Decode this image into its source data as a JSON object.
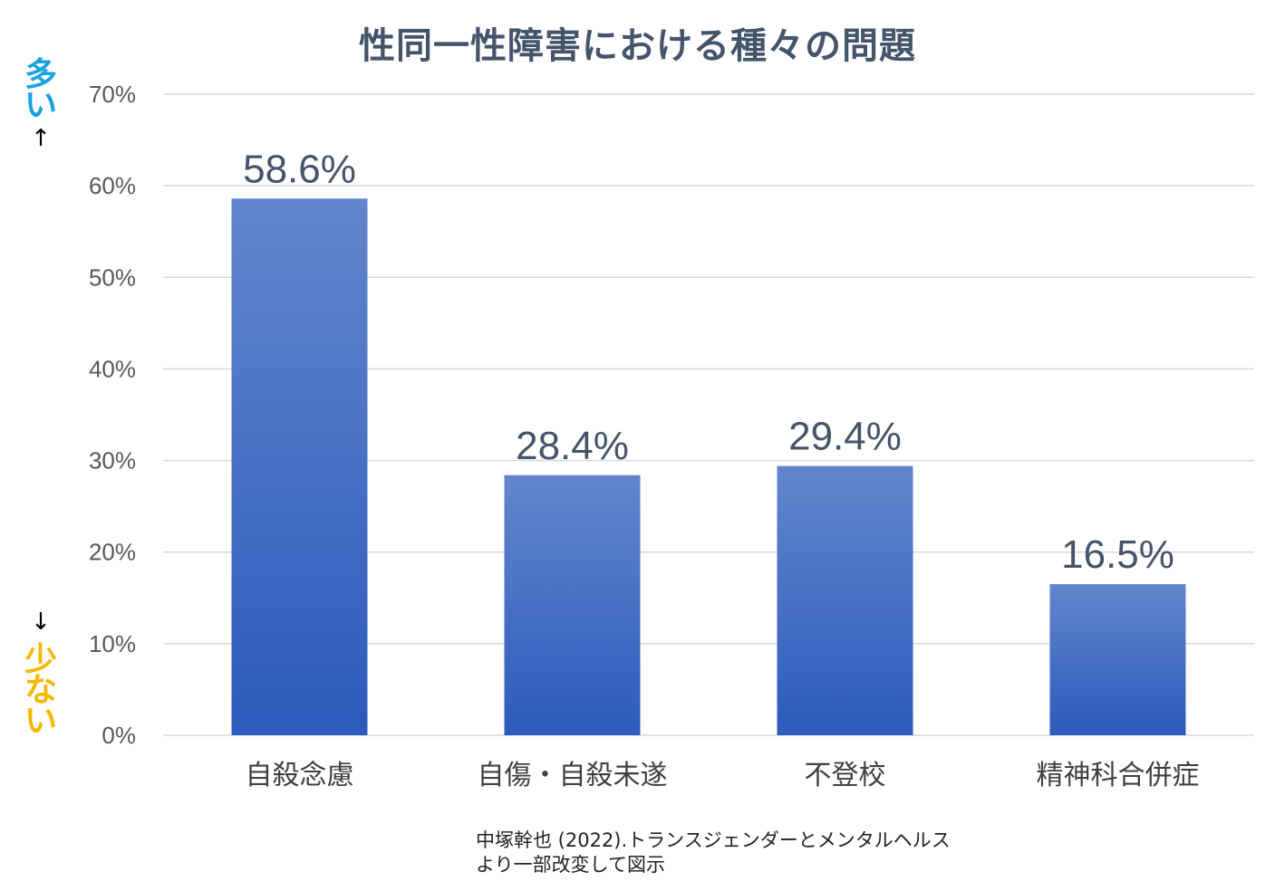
{
  "chart_data": {
    "type": "bar",
    "title": "性同一性障害における種々の問題",
    "categories": [
      "自殺念慮",
      "自傷・自殺未遂",
      "不登校",
      "精神科合併症"
    ],
    "values": [
      58.6,
      28.4,
      29.4,
      16.5
    ],
    "data_labels": [
      "58.6%",
      "28.4%",
      "29.4%",
      "16.5%"
    ],
    "ylim": [
      0,
      70
    ],
    "yticks": [
      0,
      10,
      20,
      30,
      40,
      50,
      60,
      70
    ],
    "ytick_labels": [
      "0%",
      "10%",
      "20%",
      "30%",
      "40%",
      "50%",
      "60%",
      "70%"
    ],
    "grid": true,
    "bar_color_top": "#6385cc",
    "bar_color_bottom": "#2c5bbd"
  },
  "annotations": {
    "more": [
      "多",
      "い"
    ],
    "less": [
      "少",
      "な",
      "い"
    ],
    "arrow_up": "↑",
    "arrow_down": "↓"
  },
  "source": {
    "line1": "中塚幹也 (2022).トランスジェンダーとメンタルヘルス",
    "line2": "より一部改変して図示"
  },
  "colors": {
    "title": "#44546a",
    "more": "#1aa3e0",
    "less": "#f5b800",
    "grid": "#d9d9d9",
    "tick": "#595959"
  }
}
